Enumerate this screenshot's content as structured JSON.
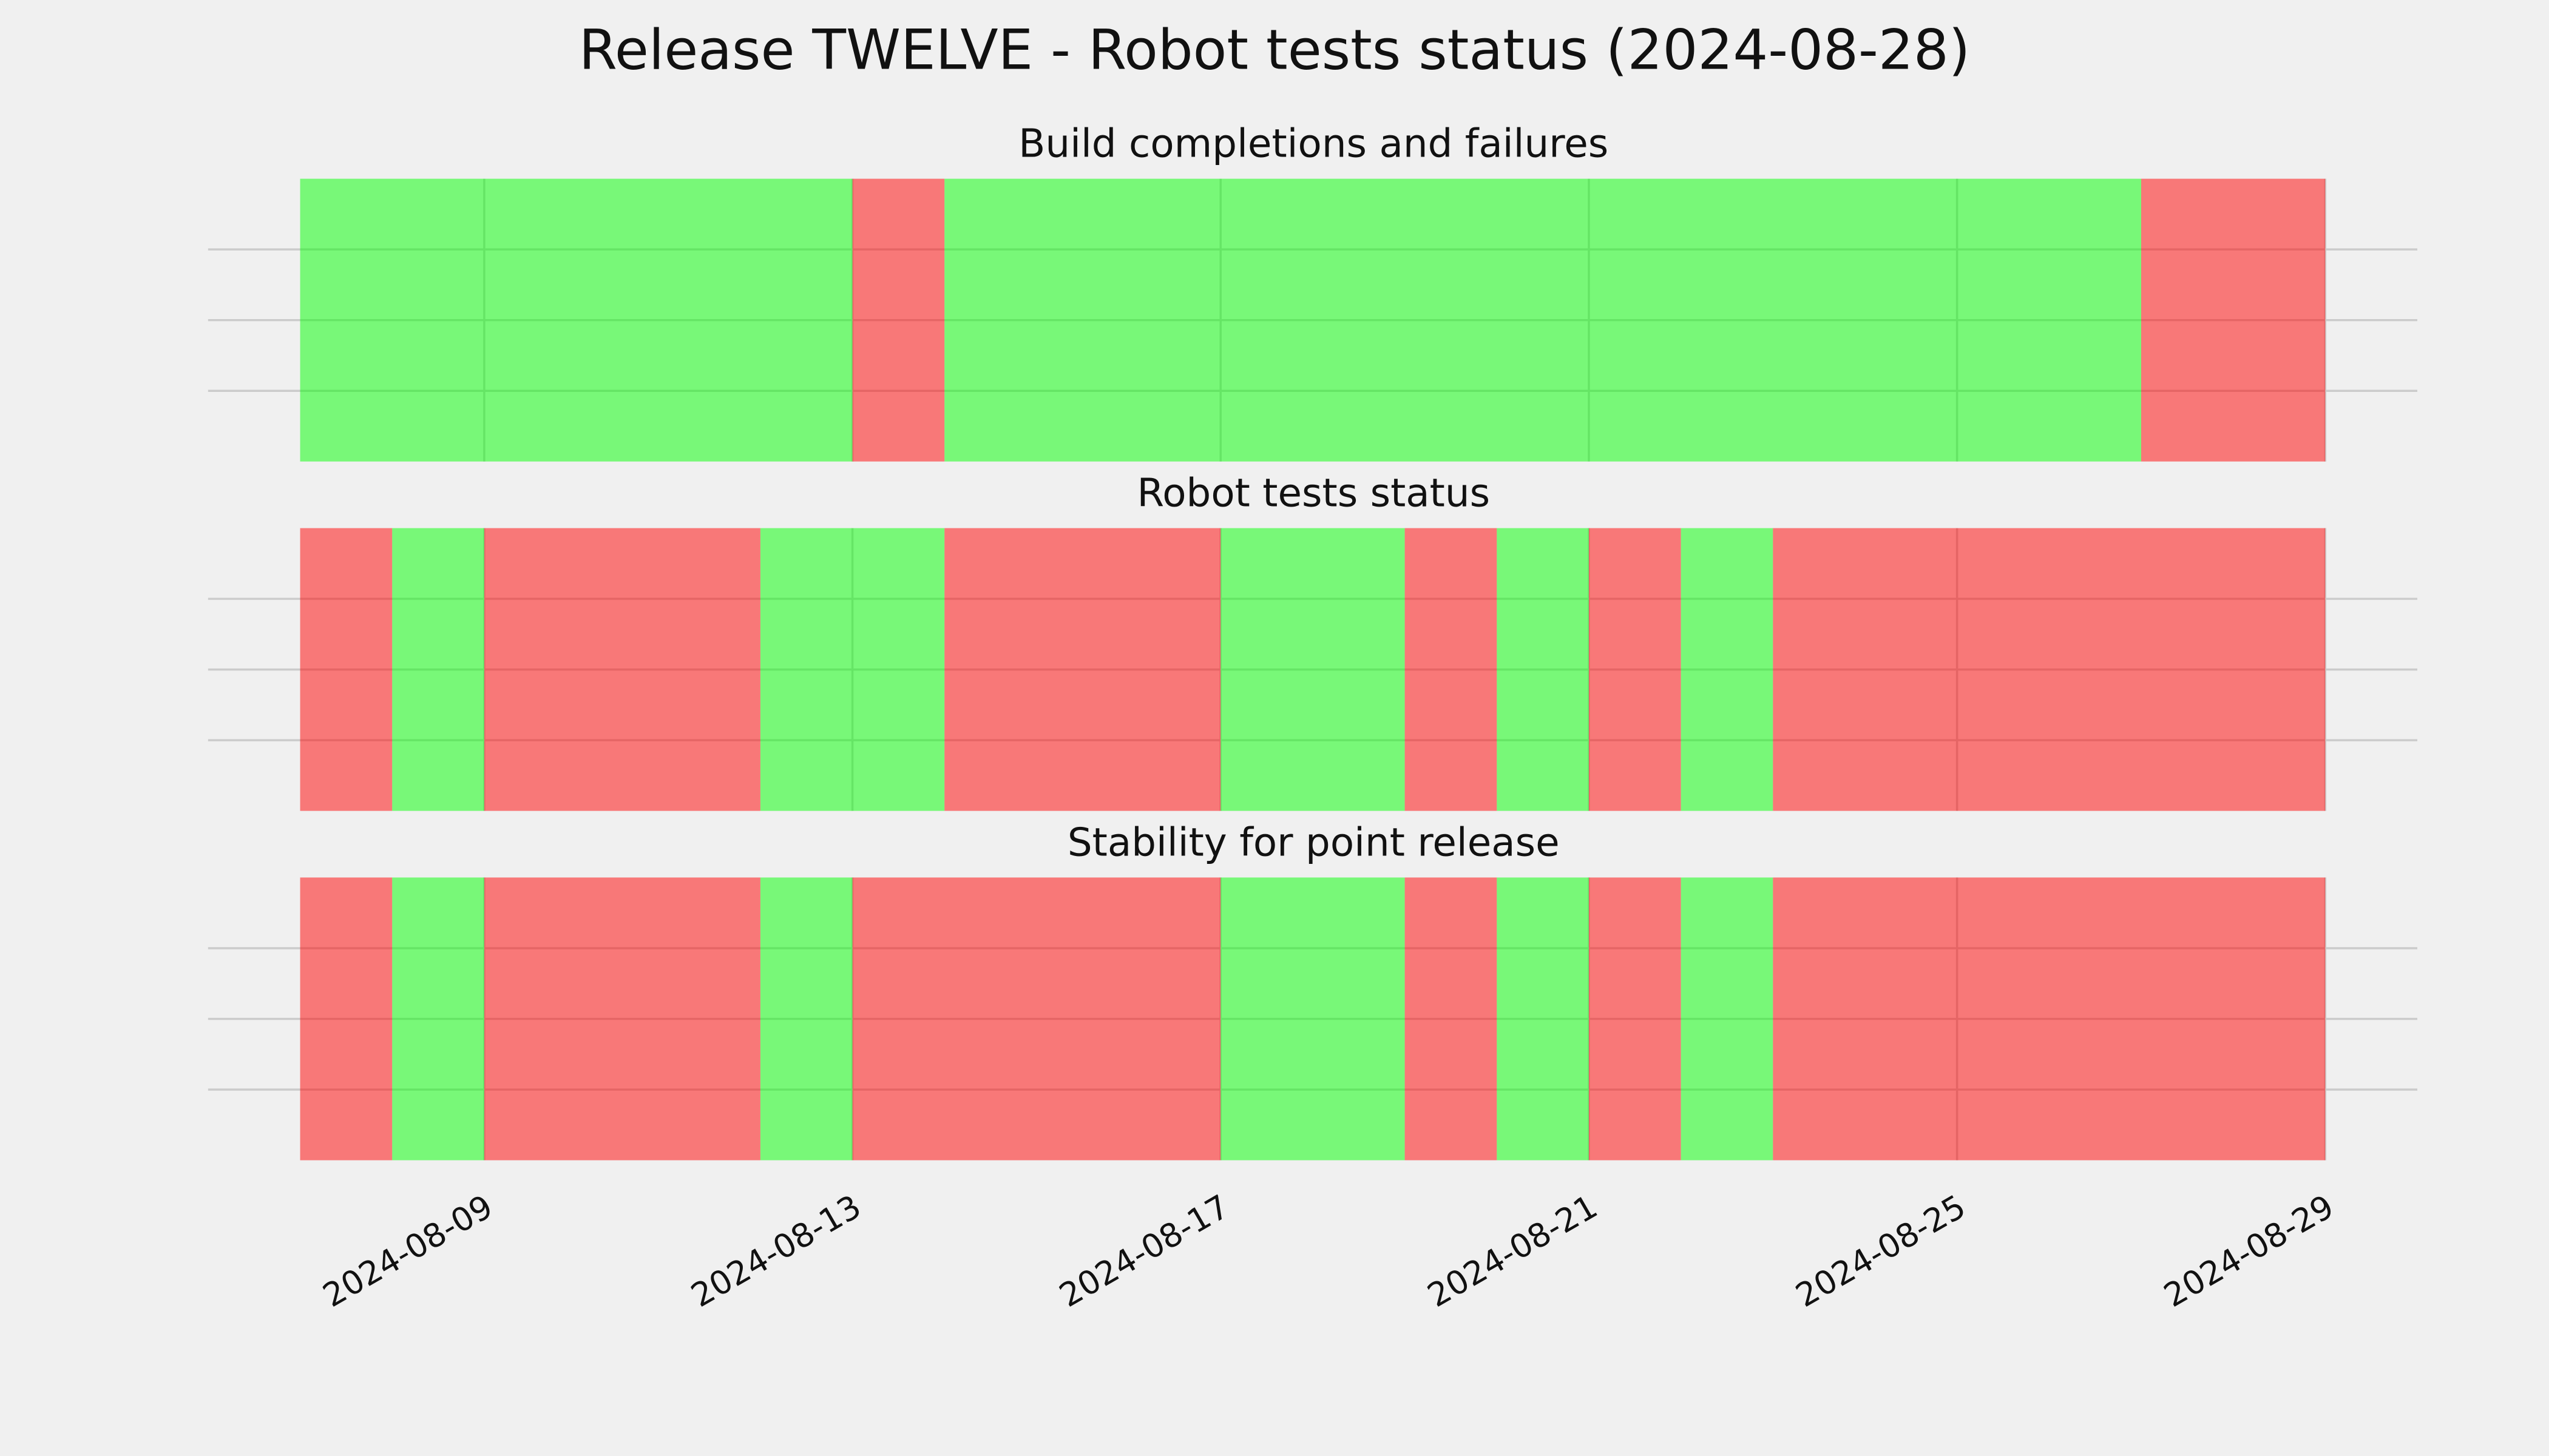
{
  "chart_data": {
    "type": "timeline",
    "title": "Release TWELVE - Robot tests status (2024-08-28)",
    "xlim": [
      "2024-08-06",
      "2024-08-30"
    ],
    "xticks": [
      "2024-08-09",
      "2024-08-13",
      "2024-08-17",
      "2024-08-21",
      "2024-08-25",
      "2024-08-29"
    ],
    "grid": true,
    "alpha": 0.5,
    "panels": [
      {
        "title": "Build completions and failures",
        "x": [
          "2024-08-07",
          "2024-08-13",
          "2024-08-14",
          "2024-08-27",
          "2024-08-29"
        ],
        "colors": [
          "#00ff00",
          "#ff0000",
          "#00ff00",
          "#ff0000"
        ]
      },
      {
        "title": "Robot tests status",
        "x": [
          "2024-08-07",
          "2024-08-08",
          "2024-08-09",
          "2024-08-12",
          "2024-08-14",
          "2024-08-17",
          "2024-08-19",
          "2024-08-20",
          "2024-08-21",
          "2024-08-22",
          "2024-08-23",
          "2024-08-29"
        ],
        "colors": [
          "#ff0000",
          "#00ff00",
          "#ff0000",
          "#00ff00",
          "#ff0000",
          "#00ff00",
          "#ff0000",
          "#00ff00",
          "#ff0000",
          "#00ff00",
          "#ff0000"
        ]
      },
      {
        "title": "Stability for point release",
        "x": [
          "2024-08-07",
          "2024-08-08",
          "2024-08-09",
          "2024-08-12",
          "2024-08-13",
          "2024-08-17",
          "2024-08-19",
          "2024-08-20",
          "2024-08-21",
          "2024-08-22",
          "2024-08-23",
          "2024-08-29"
        ],
        "colors": [
          "#ff0000",
          "#00ff00",
          "#ff0000",
          "#00ff00",
          "#ff0000",
          "#00ff00",
          "#ff0000",
          "#00ff00",
          "#ff0000",
          "#00ff00",
          "#ff0000"
        ]
      }
    ]
  }
}
